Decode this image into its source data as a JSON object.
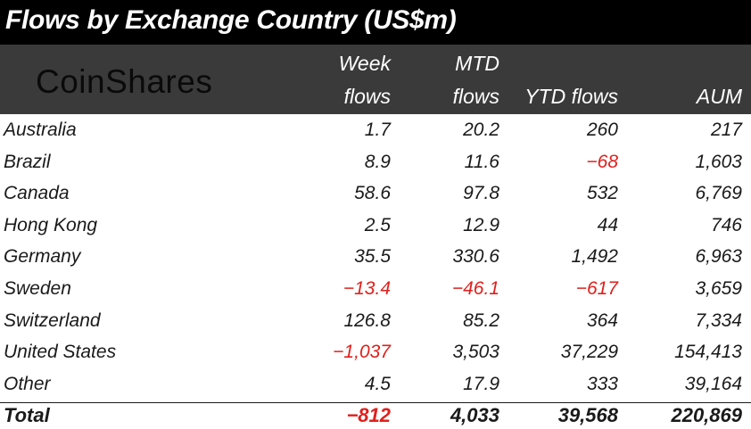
{
  "title": "Flows by Exchange Country (US$m)",
  "logo_text": "CoinShares",
  "chart_data": {
    "type": "table",
    "columns": [
      {
        "line1": "Week",
        "line2": "flows"
      },
      {
        "line1": "MTD",
        "line2": "flows"
      },
      {
        "line1": "",
        "line2": "YTD flows"
      },
      {
        "line1": "",
        "line2": "AUM"
      }
    ],
    "rows": [
      {
        "country": "Australia",
        "values": [
          "1.7",
          "20.2",
          "260",
          "217"
        ]
      },
      {
        "country": "Brazil",
        "values": [
          "8.9",
          "11.6",
          "-68",
          "1,603"
        ]
      },
      {
        "country": "Canada",
        "values": [
          "58.6",
          "97.8",
          "532",
          "6,769"
        ]
      },
      {
        "country": "Hong Kong",
        "values": [
          "2.5",
          "12.9",
          "44",
          "746"
        ]
      },
      {
        "country": "Germany",
        "values": [
          "35.5",
          "330.6",
          "1,492",
          "6,963"
        ]
      },
      {
        "country": "Sweden",
        "values": [
          "-13.4",
          "-46.1",
          "-617",
          "3,659"
        ]
      },
      {
        "country": "Switzerland",
        "values": [
          "126.8",
          "85.2",
          "364",
          "7,334"
        ]
      },
      {
        "country": "United States",
        "values": [
          "-1,037",
          "3,503",
          "37,229",
          "154,413"
        ]
      },
      {
        "country": "Other",
        "values": [
          "4.5",
          "17.9",
          "333",
          "39,164"
        ]
      }
    ],
    "total": {
      "label": "Total",
      "values": [
        "-812",
        "4,033",
        "39,568",
        "220,869"
      ]
    },
    "negative_color": "#e0201c"
  }
}
